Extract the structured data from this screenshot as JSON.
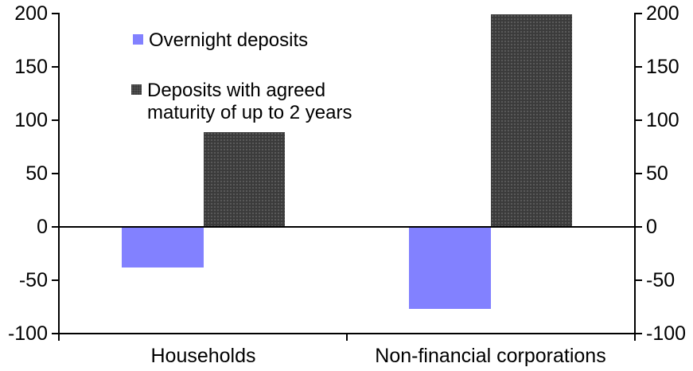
{
  "chart_data": {
    "type": "bar",
    "title": "",
    "categories": [
      "Households",
      "Non-financial corporations"
    ],
    "series": [
      {
        "name": "Overnight deposits",
        "values": [
          -38,
          -77
        ],
        "color": "#8281ff",
        "pattern": "solid"
      },
      {
        "name": "Deposits with agreed maturity of up to 2 years",
        "values": [
          89,
          199
        ],
        "color": "#3b3b3b",
        "pattern": "dotted"
      }
    ],
    "ylim": [
      -100,
      200
    ],
    "yticks": [
      200,
      150,
      100,
      50,
      0,
      -50,
      -100
    ],
    "ytick_interval": 50,
    "xlabel": "",
    "ylabel": "",
    "grid": false,
    "axes": {
      "left": true,
      "right": true,
      "dual_axis_labels": true
    },
    "legend_position": "inside-top-left",
    "legend": [
      {
        "lines": [
          "Overnight deposits"
        ],
        "color": "#8281ff",
        "pattern": "solid"
      },
      {
        "lines": [
          "Deposits with agreed",
          "maturity of up to 2 years"
        ],
        "color": "#3b3b3b",
        "pattern": "dotted"
      }
    ],
    "colors": {
      "overnight_deposits": "#8281ff",
      "agreed_maturity": "#3b3b3b",
      "axis": "#000000",
      "background": "#ffffff"
    }
  }
}
